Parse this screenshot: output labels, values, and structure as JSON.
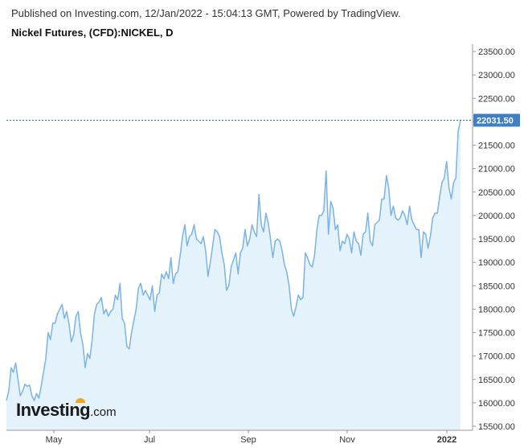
{
  "header": {
    "published": "Published on Investing.com, 12/Jan/2022 - 15:04:13 GMT, Powered by TradingView.",
    "title": "Nickel Futures, (CFD):NICKEL, D"
  },
  "logo": {
    "word": "Investing",
    "suffix": ".com"
  },
  "colors": {
    "line": "#7ab3e6",
    "fill": "#e4f2fb",
    "last_price_box": "#3f7fc6",
    "last_price_line": "#2e6bb3",
    "axis": "#999999"
  },
  "chart_data": {
    "type": "area",
    "ylim": [
      15500,
      23750
    ],
    "y_ticks": [
      15500,
      16000,
      16500,
      17000,
      17500,
      18000,
      18500,
      19000,
      19500,
      20000,
      20500,
      21000,
      21500,
      22000,
      22500,
      23000,
      23500
    ],
    "y_tick_labels": [
      "15500.00",
      "16000.00",
      "16500.00",
      "17000.00",
      "17500.00",
      "18000.00",
      "18500.00",
      "19000.00",
      "19500.00",
      "20000.00",
      "20500.00",
      "21000.00",
      "21500.00",
      "22000.00",
      "22500.00",
      "23000.00",
      "23500.00"
    ],
    "x_tick_labels": [
      "May",
      "Jul",
      "Sep",
      "Nov",
      "2022"
    ],
    "last_price": 22031.5,
    "last_price_label": "22031.50",
    "grid": false,
    "series": [
      {
        "values": [
          16050,
          16250,
          16750,
          16650,
          16850,
          16500,
          16150,
          16250,
          16400,
          16350,
          16380,
          16150,
          16050,
          16200,
          16100,
          16350,
          16650,
          16950,
          17500,
          17350,
          17700,
          17700,
          17900,
          18000,
          18100,
          17800,
          17950,
          17700,
          17300,
          17450,
          17850,
          17950,
          17500,
          17250,
          16750,
          17050,
          16950,
          17350,
          17900,
          18100,
          18150,
          18250,
          17900,
          18000,
          17850,
          17950,
          18000,
          18300,
          18200,
          18550,
          17800,
          17700,
          17200,
          17150,
          17500,
          17750,
          18000,
          18450,
          18550,
          18300,
          18400,
          18300,
          18200,
          18500,
          17950,
          18300,
          18350,
          18750,
          18650,
          18800,
          18650,
          19100,
          18550,
          18750,
          18800,
          19150,
          19550,
          19800,
          19350,
          19550,
          19600,
          19800,
          19500,
          19450,
          19400,
          19550,
          19250,
          18700,
          19000,
          19350,
          19700,
          19650,
          19550,
          19200,
          18950,
          18400,
          18500,
          18900,
          19050,
          19200,
          18750,
          19200,
          19300,
          19700,
          19350,
          19500,
          19800,
          19650,
          19550,
          20450,
          19800,
          19650,
          20050,
          19850,
          19500,
          19100,
          19450,
          19500,
          19450,
          19250,
          18950,
          18800,
          18500,
          18000,
          17850,
          18050,
          18300,
          18200,
          18250,
          19200,
          19100,
          18950,
          18900,
          19150,
          19700,
          20000,
          20000,
          20100,
          20950,
          19600,
          20300,
          20150,
          19700,
          19800,
          19250,
          19450,
          19400,
          19600,
          19500,
          19200,
          19650,
          19450,
          19400,
          19150,
          19600,
          19650,
          20050,
          19450,
          19350,
          19800,
          19850,
          19900,
          20350,
          20350,
          20850,
          20600,
          20000,
          20200,
          19950,
          19900,
          19950,
          20100,
          20000,
          19800,
          20200,
          19900,
          19800,
          19700,
          19700,
          19100,
          19650,
          19600,
          19300,
          19550,
          19950,
          20050,
          20050,
          20400,
          20700,
          20800,
          21150,
          20600,
          20350,
          20700,
          20800,
          21800,
          22031.5
        ]
      }
    ]
  }
}
